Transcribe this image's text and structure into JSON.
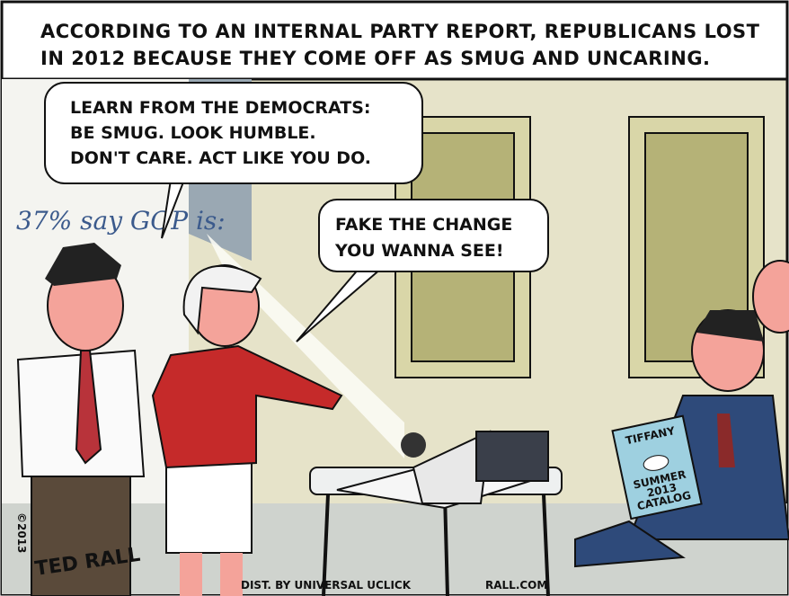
{
  "caption": {
    "lines": [
      "ACCORDING TO AN INTERNAL PARTY REPORT, REPUBLICANS LOST",
      "IN 2012 BECAUSE THEY COME OFF AS SMUG AND UNCARING."
    ]
  },
  "bubbles": [
    {
      "lines": [
        "LEARN FROM THE DEMOCRATS:",
        "BE SMUG. LOOK HUMBLE.",
        "DON'T CARE. ACT LIKE YOU DO."
      ]
    },
    {
      "lines": [
        "FAKE THE CHANGE",
        "YOU WANNA SEE!"
      ]
    }
  ],
  "board": {
    "title": "37% say GOP is:"
  },
  "magazine": {
    "lines": [
      "TIFFANY",
      "SUMMER",
      "2013",
      "CATALOG"
    ]
  },
  "credits": {
    "copyright": "©2013",
    "signature": "TED RALL",
    "distributor": "DIST. BY UNIVERSAL UCLICK",
    "site": "RALL.COM"
  }
}
